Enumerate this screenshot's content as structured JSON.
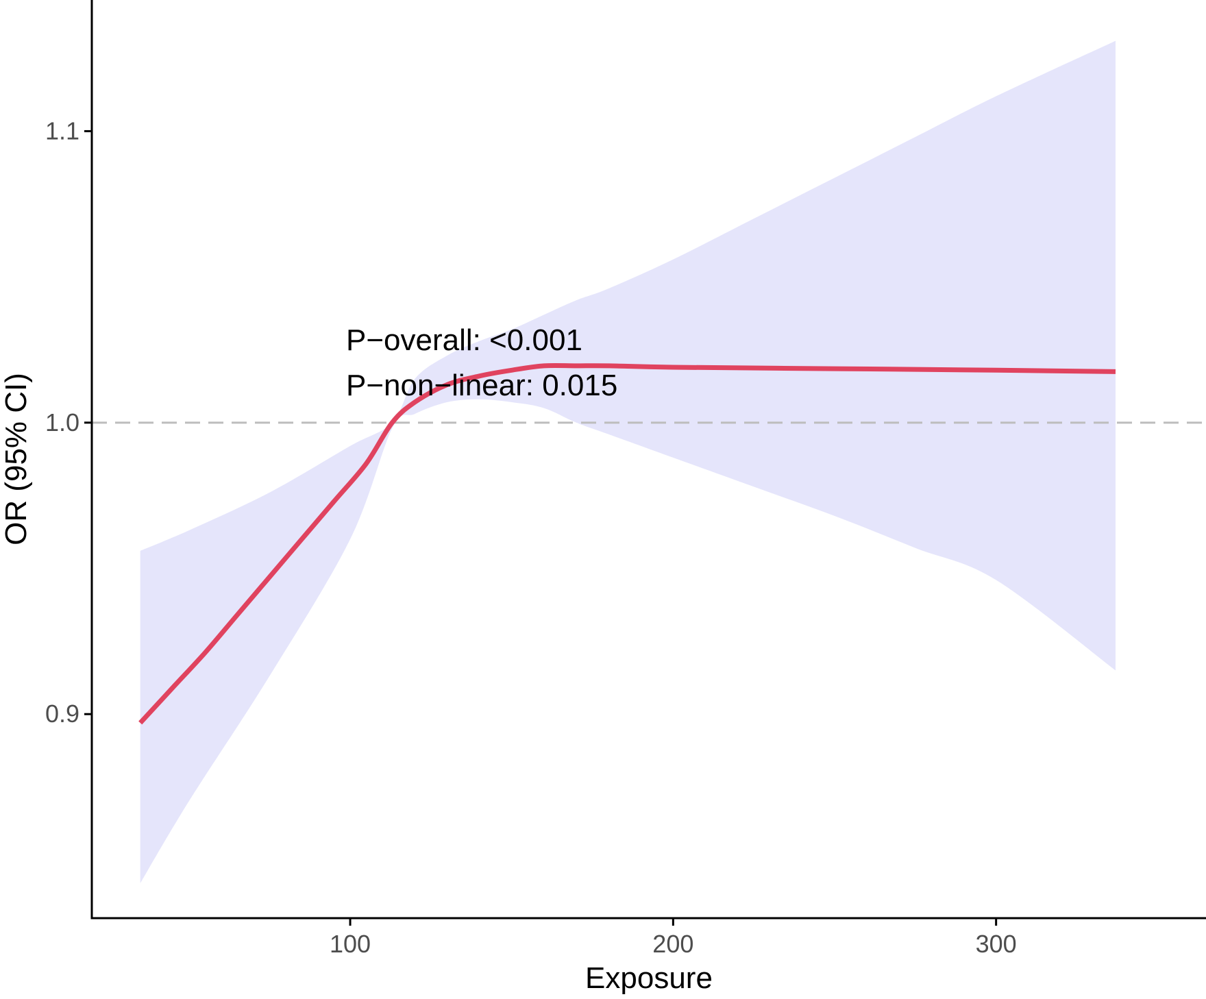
{
  "chart_data": {
    "type": "line",
    "title": "",
    "xlabel": "Exposure",
    "ylabel": "OR (95% CI)",
    "xlim": [
      20,
      365
    ],
    "ylim": [
      0.83,
      1.145
    ],
    "x_ticks": [
      100,
      200,
      300
    ],
    "x_tick_labels": [
      "100",
      "200",
      "300"
    ],
    "y_ticks": [
      0.9,
      1.0,
      1.1
    ],
    "y_tick_labels": [
      "0.9",
      "1.0",
      "1.1"
    ],
    "reference_line": {
      "y": 1.0,
      "style": "dashed",
      "color": "#bdbdbd"
    },
    "annotations": [
      "P−overall: <0.001",
      "P−non−linear: 0.015"
    ],
    "grid": false,
    "legend": "none",
    "series": [
      {
        "color": "#e0435f",
        "x": [
          35,
          45,
          55,
          65,
          75,
          85,
          95,
          105,
          113,
          120,
          130,
          140,
          150,
          160,
          170,
          180,
          200,
          250,
          300,
          337
        ],
        "y": [
          0.897,
          0.909,
          0.921,
          0.934,
          0.947,
          0.96,
          0.973,
          0.986,
          1.0,
          1.007,
          1.013,
          1.016,
          1.018,
          1.0195,
          1.0195,
          1.0195,
          1.019,
          1.0185,
          1.018,
          1.0175
        ]
      }
    ],
    "confidence_band": {
      "color": "#e5e5fb",
      "x": [
        35,
        50,
        75,
        100,
        113,
        120,
        130,
        140,
        150,
        160,
        170,
        180,
        200,
        225,
        250,
        275,
        300,
        337
      ],
      "lower": [
        0.842,
        0.87,
        0.913,
        0.96,
        0.998,
        1.003,
        1.007,
        1.008,
        1.007,
        1.005,
        1.0,
        0.996,
        0.988,
        0.978,
        0.968,
        0.957,
        0.946,
        0.915
      ],
      "upper": [
        0.956,
        0.963,
        0.976,
        0.992,
        1.0,
        1.015,
        1.023,
        1.028,
        1.032,
        1.037,
        1.042,
        1.046,
        1.056,
        1.07,
        1.084,
        1.098,
        1.112,
        1.131
      ]
    }
  }
}
